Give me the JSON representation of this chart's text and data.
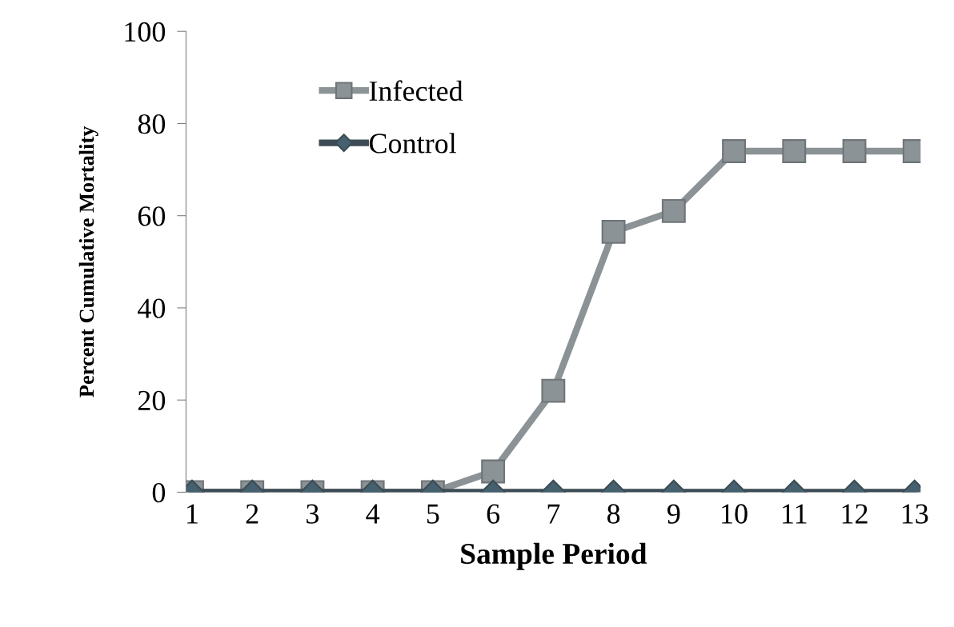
{
  "chart_data": {
    "type": "line",
    "xlabel": "Sample Period",
    "ylabel": "Percent Cumulative Mortality",
    "categories": [
      "1",
      "2",
      "3",
      "4",
      "5",
      "6",
      "7",
      "8",
      "9",
      "10",
      "11",
      "12",
      "13"
    ],
    "series": [
      {
        "name": "Infected",
        "color": "#8c9396",
        "marker": "square",
        "values": [
          0,
          0,
          0,
          0,
          0,
          4.5,
          22,
          56.5,
          61,
          74,
          74,
          74,
          74
        ]
      },
      {
        "name": "Control",
        "color": "#3d4c54",
        "marker": "diamond",
        "values": [
          0,
          0,
          0,
          0,
          0,
          0,
          0,
          0,
          0,
          0,
          0,
          0,
          0
        ]
      }
    ],
    "ylim": [
      0,
      100
    ],
    "yticks": [
      0,
      20,
      40,
      60,
      80,
      100
    ],
    "legend": "top left",
    "grid": false
  }
}
